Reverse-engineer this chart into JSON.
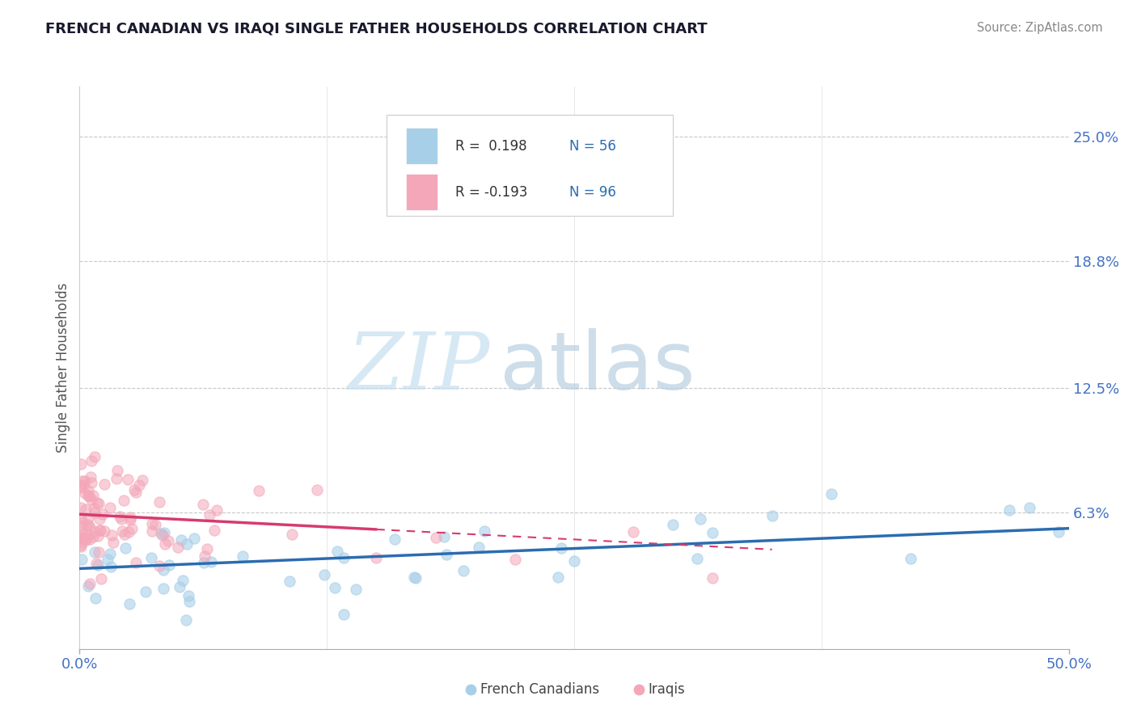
{
  "title": "FRENCH CANADIAN VS IRAQI SINGLE FATHER HOUSEHOLDS CORRELATION CHART",
  "source": "Source: ZipAtlas.com",
  "ylabel": "Single Father Households",
  "ytick_labels": [
    "6.3%",
    "12.5%",
    "18.8%",
    "25.0%"
  ],
  "ytick_values": [
    0.063,
    0.125,
    0.188,
    0.25
  ],
  "xlim": [
    0.0,
    0.5
  ],
  "ylim": [
    -0.005,
    0.275
  ],
  "blue_color": "#a8cfe8",
  "pink_color": "#f4a7b9",
  "blue_line_color": "#2b6cb0",
  "pink_line_color": "#d63b6e",
  "background_color": "#ffffff",
  "title_color": "#1a1a2e",
  "axis_color": "#888888",
  "grid_color": "#c8c8c8",
  "ytick_color": "#4472c4",
  "xtick_color": "#4472c4",
  "legend_text_color": "#1a1a1a",
  "legend_r_color": "#2b6cb0",
  "watermark_zip_color": "#c5dff0",
  "watermark_atlas_color": "#b8cfe0"
}
